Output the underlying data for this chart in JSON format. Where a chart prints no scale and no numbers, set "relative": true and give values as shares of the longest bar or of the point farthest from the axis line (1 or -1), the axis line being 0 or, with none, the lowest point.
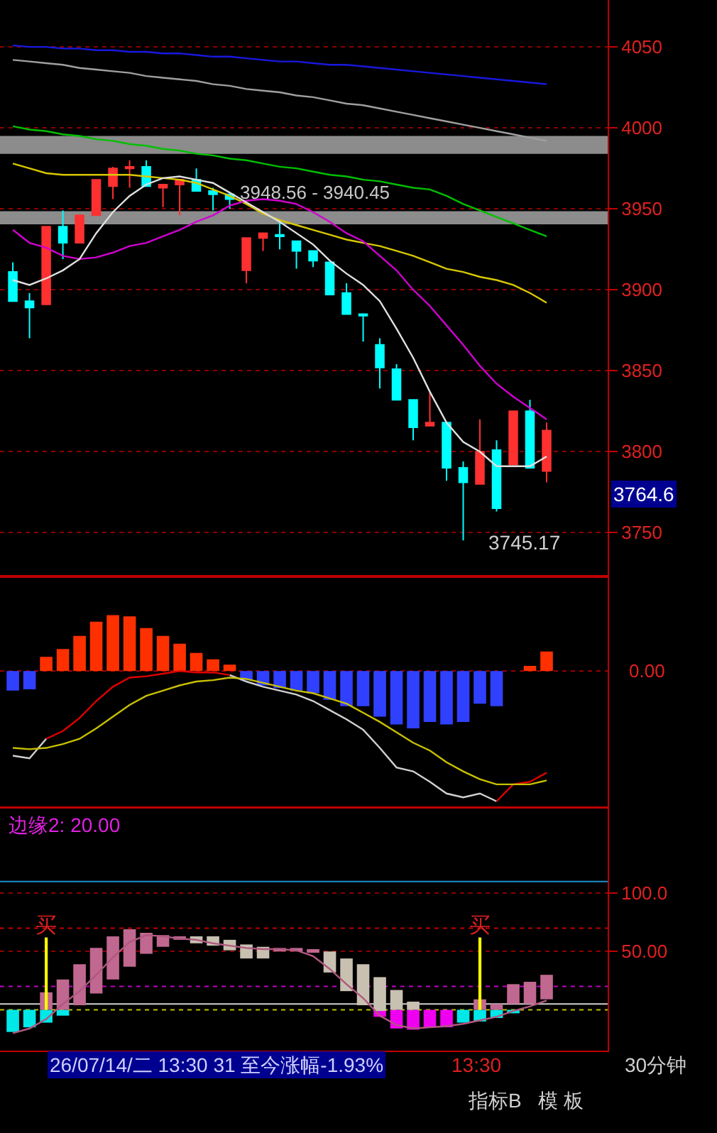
{
  "chart_data": [
    {
      "type": "candlestick",
      "categories": [
        null,
        null,
        null,
        null,
        null,
        null,
        null,
        null,
        null,
        null,
        null,
        null,
        null,
        null,
        null,
        null,
        null,
        null,
        null,
        null,
        null,
        null,
        null,
        null,
        null,
        null,
        null,
        null,
        null,
        null,
        null,
        null,
        null
      ],
      "ohlc": [
        [
          3911,
          3917,
          3893,
          3893
        ],
        [
          3893,
          3898,
          3870,
          3889
        ],
        [
          3891,
          3939,
          3891,
          3939
        ],
        [
          3939,
          3949,
          3919,
          3929
        ],
        [
          3929,
          3946,
          3929,
          3946
        ],
        [
          3946,
          3968,
          3946,
          3968
        ],
        [
          3964,
          3976,
          3956,
          3975
        ],
        [
          3975,
          3980,
          3963,
          3976
        ],
        [
          3976,
          3980,
          3964,
          3964
        ],
        [
          3963,
          3965,
          3951,
          3965
        ],
        [
          3965,
          3968,
          3946,
          3968
        ],
        [
          3968,
          3975,
          3961,
          3961
        ],
        [
          3961,
          3963,
          3949,
          3959
        ],
        [
          3959,
          3959,
          3950,
          3956
        ],
        [
          3912,
          3932,
          3904,
          3932
        ],
        [
          3932,
          3935,
          3924,
          3935
        ],
        [
          3934,
          3943,
          3925,
          3933
        ],
        [
          3930,
          3930,
          3913,
          3924
        ],
        [
          3924,
          3924,
          3914,
          3918
        ],
        [
          3917,
          3917,
          3897,
          3897
        ],
        [
          3898,
          3904,
          3885,
          3885
        ],
        [
          3885,
          3885,
          3868,
          3884
        ],
        [
          3866,
          3870,
          3839,
          3852
        ],
        [
          3851,
          3854,
          3832,
          3832
        ],
        [
          3832,
          3832,
          3807,
          3815
        ],
        [
          3816,
          3837,
          3816,
          3818
        ],
        [
          3818,
          3818,
          3782,
          3790
        ],
        [
          3790,
          3794,
          3745.17,
          3781
        ],
        [
          3780,
          3820,
          3780,
          3800
        ],
        [
          3801,
          3807,
          3763,
          3765
        ],
        [
          3792,
          3825,
          3792,
          3825
        ],
        [
          3825,
          3832,
          3790,
          3790
        ],
        [
          3788,
          3818,
          3781,
          3813
        ]
      ],
      "colors": [
        "#00ffff",
        "#00ffff",
        "#ff3030",
        "#00ffff",
        "#ff3030",
        "#ff3030",
        "#ff3030",
        "#ff3030",
        "#00ffff",
        "#ff3030",
        "#ff3030",
        "#00ffff",
        "#00ffff",
        "#00ffff",
        "#ff3030",
        "#ff3030",
        "#00ffff",
        "#00ffff",
        "#00ffff",
        "#00ffff",
        "#00ffff",
        "#00ffff",
        "#00ffff",
        "#00ffff",
        "#00ffff",
        "#ff3030",
        "#00ffff",
        "#00ffff",
        "#ff3030",
        "#00ffff",
        "#ff3030",
        "#00ffff",
        "#ff3030"
      ],
      "series": [
        {
          "type": "line",
          "color": "#1818e0",
          "values": [
            4051,
            4050,
            4050,
            4049,
            4049,
            4048,
            4048,
            4047,
            4047,
            4046,
            4046,
            4045,
            4044,
            4044,
            4043,
            4042,
            4041,
            4041,
            4040,
            4039,
            4039,
            4038,
            4037,
            4036,
            4035,
            4034,
            4033,
            4032,
            4031,
            4030,
            4029,
            4028,
            4027
          ]
        },
        {
          "type": "line",
          "color": "#a0a0a0",
          "values": [
            4042,
            4041,
            4040,
            4039,
            4037,
            4036,
            4035,
            4034,
            4032,
            4031,
            4030,
            4029,
            4027,
            4026,
            4024,
            4023,
            4022,
            4020,
            4019,
            4017,
            4015,
            4014,
            4012,
            4010,
            4008,
            4006,
            4004,
            4002,
            4000,
            3998,
            3996,
            3994,
            3992
          ]
        },
        {
          "type": "line",
          "color": "#00c000",
          "values": [
            4001,
            3999,
            3998,
            3996,
            3995,
            3993,
            3992,
            3990,
            3989,
            3987,
            3986,
            3984,
            3983,
            3981,
            3980,
            3978,
            3976,
            3975,
            3973,
            3971,
            3970,
            3968,
            3967,
            3965,
            3963,
            3962,
            3958,
            3953,
            3949,
            3945,
            3941,
            3937,
            3933
          ]
        },
        {
          "type": "line",
          "color": "#d8c800",
          "values": [
            3978,
            3975,
            3972,
            3971,
            3971,
            3971,
            3971,
            3971,
            3970,
            3969,
            3968,
            3966,
            3962,
            3958,
            3953,
            3947,
            3943,
            3940,
            3937,
            3934,
            3931,
            3929,
            3927,
            3924,
            3921,
            3917,
            3913,
            3911,
            3908,
            3906,
            3903,
            3898,
            3892
          ]
        },
        {
          "type": "line",
          "color": "#d000d0",
          "values": [
            3937,
            3929,
            3926,
            3921,
            3919,
            3920,
            3923,
            3927,
            3929,
            3933,
            3937,
            3942,
            3946,
            3952,
            3955,
            3956,
            3955,
            3953,
            3948,
            3942,
            3935,
            3930,
            3921,
            3912,
            3900,
            3890,
            3878,
            3866,
            3853,
            3842,
            3834,
            3827,
            3820
          ]
        },
        {
          "type": "line",
          "color": "#e0e0e0",
          "values": [
            3906,
            3903,
            3907,
            3912,
            3919,
            3935,
            3948,
            3958,
            3965,
            3969,
            3970,
            3968,
            3966,
            3960,
            3954,
            3948,
            3942,
            3935,
            3928,
            3918,
            3910,
            3903,
            3893,
            3876,
            3858,
            3837,
            3818,
            3806,
            3800,
            3791,
            3791,
            3791,
            3797
          ]
        }
      ],
      "ylim": [
        3724,
        4079
      ],
      "yticks": [
        3750,
        3800,
        3850,
        3900,
        3950,
        4000,
        4050
      ],
      "grid": "y",
      "bands": [
        {
          "axis": "y",
          "from": 3984,
          "to": 3995,
          "color": "#8c8c8c"
        },
        {
          "axis": "y",
          "from": 3940.45,
          "to": 3948.56,
          "label": "3948.56 - 3940.45",
          "color": "#8c8c8c"
        }
      ],
      "annotations": [
        "3745.17",
        "3764.6"
      ]
    },
    {
      "type": "bar",
      "relative": true,
      "categories": [
        null,
        null,
        null,
        null,
        null,
        null,
        null,
        null,
        null,
        null,
        null,
        null,
        null,
        null,
        null,
        null,
        null,
        null,
        null,
        null,
        null,
        null,
        null,
        null,
        null,
        null,
        null,
        null,
        null,
        null,
        null,
        null,
        null
      ],
      "series": [
        {
          "values": [
            -0.15,
            -0.14,
            0.11,
            0.17,
            0.27,
            0.38,
            0.43,
            0.42,
            0.33,
            0.27,
            0.21,
            0.14,
            0.09,
            0.05,
            -0.07,
            -0.11,
            -0.13,
            -0.15,
            -0.17,
            -0.22,
            -0.27,
            -0.27,
            -0.35,
            -0.41,
            -0.44,
            -0.39,
            -0.41,
            -0.39,
            -0.25,
            -0.27,
            0,
            0.04,
            0.15
          ],
          "colors": [
            "#3040ff",
            "#3040ff",
            "#ff3000",
            "#ff3000",
            "#ff3000",
            "#ff3000",
            "#ff3000",
            "#ff3000",
            "#ff3000",
            "#ff3000",
            "#ff3000",
            "#ff3000",
            "#ff3000",
            "#ff3000",
            "#3040ff",
            "#3040ff",
            "#3040ff",
            "#3040ff",
            "#3040ff",
            "#3040ff",
            "#3040ff",
            "#3040ff",
            "#3040ff",
            "#3040ff",
            "#3040ff",
            "#3040ff",
            "#3040ff",
            "#3040ff",
            "#3040ff",
            "#3040ff",
            "#c8c000",
            "#ff3000",
            "#ff3000"
          ]
        },
        {
          "type": "line",
          "color": "#d0d0d0",
          "values": [
            -0.65,
            -0.67,
            -0.52,
            null,
            null,
            null,
            null,
            null,
            null,
            null,
            null,
            null,
            null,
            -0.03,
            -0.08,
            -0.12,
            -0.15,
            -0.18,
            -0.23,
            -0.3,
            -0.37,
            -0.45,
            -0.59,
            -0.74,
            -0.77,
            -0.85,
            -0.94,
            -0.97,
            -0.94,
            -1,
            null,
            null,
            null
          ]
        },
        {
          "type": "line",
          "color": "#e00000",
          "values": [
            null,
            null,
            -0.52,
            -0.46,
            -0.36,
            -0.23,
            -0.12,
            -0.05,
            -0.04,
            -0.02,
            0,
            -0.01,
            -0.01,
            -0.03,
            null,
            null,
            null,
            null,
            null,
            null,
            null,
            null,
            null,
            null,
            null,
            null,
            null,
            null,
            null,
            -1,
            -0.87,
            -0.85,
            -0.78
          ]
        },
        {
          "type": "line",
          "color": "#c8c000",
          "values": [
            -0.59,
            -0.6,
            -0.59,
            -0.56,
            -0.52,
            -0.44,
            -0.35,
            -0.26,
            -0.19,
            -0.15,
            -0.11,
            -0.08,
            -0.07,
            -0.05,
            -0.06,
            -0.09,
            -0.12,
            -0.15,
            -0.17,
            -0.21,
            -0.25,
            -0.32,
            -0.39,
            -0.47,
            -0.55,
            -0.61,
            -0.7,
            -0.77,
            -0.83,
            -0.87,
            -0.87,
            -0.87,
            -0.84
          ]
        }
      ],
      "ref_lines": [
        {
          "axis": "y",
          "value": 0,
          "label": "0.00",
          "color": "#a00000",
          "line_style": "dotted"
        }
      ]
    },
    {
      "type": "bar",
      "categories": [
        null,
        null,
        null,
        null,
        null,
        null,
        null,
        null,
        null,
        null,
        null,
        null,
        null,
        null,
        null,
        null,
        null,
        null,
        null,
        null,
        null,
        null,
        null,
        null,
        null,
        null,
        null,
        null,
        null,
        null,
        null,
        null,
        null
      ],
      "series": [
        {
          "values": [
            -19,
            -15,
            -11,
            -5,
            null,
            null,
            null,
            null,
            null,
            null,
            null,
            null,
            null,
            null,
            null,
            null,
            null,
            null,
            null,
            null,
            null,
            null,
            -6,
            -16,
            -17,
            -15,
            -15,
            -11,
            -10,
            -7,
            -3,
            null,
            null
          ],
          "colors": [
            "#00e8e8",
            "#00e8e8",
            "#00e8e8",
            "#00e8e8",
            "#00e8e8",
            "#00e8e8",
            "#00e8e8",
            "#00e8e8",
            "#00e8e8",
            "#00e8e8",
            "#00e8e8",
            "#00e8e8",
            "#00e8e8",
            "#00e8e8",
            "#00e8e8",
            "#00e8e8",
            "#00e8e8",
            "#00e8e8",
            "#00e8e8",
            "#00e8e8",
            "#00e8e8",
            "#00e8e8",
            "#f000f0",
            "#f000f0",
            "#f000f0",
            "#f000f0",
            "#f000f0",
            "#00e8e8",
            "#00e8e8",
            "#00e8e8",
            "#00e8e8",
            "#00e8e8",
            "#00e8e8"
          ]
        },
        {
          "base": [
            null,
            null,
            0,
            0,
            4,
            14,
            26,
            37,
            48,
            54,
            60,
            57,
            55,
            51,
            44,
            44,
            50,
            50,
            50,
            32,
            16,
            4,
            -1,
            0,
            0,
            null,
            null,
            null,
            0,
            0,
            5,
            5,
            9
          ],
          "values": [
            null,
            null,
            15,
            26,
            35,
            39,
            37,
            32,
            18,
            10,
            3,
            6,
            8,
            9,
            12,
            10,
            3,
            3,
            2,
            18,
            28,
            35,
            29,
            17,
            7,
            null,
            null,
            null,
            9,
            5,
            17,
            19,
            21
          ],
          "colors": [
            "#c06890",
            "#c06890",
            "#c06890",
            "#c06890",
            "#c06890",
            "#c06890",
            "#c06890",
            "#c06890",
            "#c06890",
            "#c06890",
            "#c06890",
            "#c8c0b0",
            "#c8c0b0",
            "#c8c0b0",
            "#c8c0b0",
            "#c8c0b0",
            "#c06890",
            "#c06890",
            "#c06890",
            "#c8c0b0",
            "#c8c0b0",
            "#c8c0b0",
            "#c8c0b0",
            "#c8c0b0",
            "#c8c0b0",
            "#c06890",
            "#c06890",
            "#c06890",
            "#c06890",
            "#c06890",
            "#c06890",
            "#c06890",
            "#c06890"
          ]
        },
        {
          "color": "#ffff00",
          "base": [
            null,
            null,
            0,
            null,
            null,
            null,
            null,
            null,
            null,
            null,
            null,
            null,
            null,
            null,
            null,
            null,
            null,
            null,
            null,
            null,
            null,
            null,
            null,
            null,
            null,
            null,
            null,
            null,
            0,
            null,
            null,
            null,
            null
          ],
          "values": [
            null,
            null,
            62,
            null,
            null,
            null,
            null,
            null,
            null,
            null,
            null,
            null,
            null,
            null,
            null,
            null,
            null,
            null,
            null,
            null,
            null,
            null,
            null,
            null,
            null,
            null,
            null,
            null,
            62,
            null,
            null,
            null,
            null
          ],
          "value_labels": [
            null,
            null,
            "买",
            null,
            null,
            null,
            null,
            null,
            null,
            null,
            null,
            null,
            null,
            null,
            null,
            null,
            null,
            null,
            null,
            null,
            null,
            null,
            null,
            null,
            null,
            null,
            null,
            null,
            "买",
            null,
            null,
            null,
            null
          ]
        },
        {
          "type": "line",
          "color": "#b05880",
          "values": [
            -20,
            -16,
            -8,
            5,
            16,
            30,
            45,
            58,
            64,
            63,
            61,
            60,
            57,
            55,
            53,
            52,
            52,
            51,
            46,
            35,
            22,
            10,
            -5,
            -13,
            -16,
            -15,
            -14,
            -12,
            -9,
            -6,
            -1,
            3,
            8
          ]
        }
      ],
      "ylim": [
        -35,
        173
      ],
      "yticks": [
        {
          "value": 50,
          "label": "50.00"
        },
        {
          "value": 100,
          "label": "100.0"
        }
      ],
      "grid": "y",
      "ref_lines": [
        {
          "axis": "y",
          "value": 110,
          "color": "#1e90d0",
          "line_style": "solid"
        },
        {
          "axis": "y",
          "value": 70,
          "color": "#c00000",
          "line_style": "dotted"
        },
        {
          "axis": "y",
          "value": 20,
          "color": "#c000c0",
          "line_style": "dotted"
        },
        {
          "axis": "y",
          "value": 5,
          "color": "#d0d0d0",
          "line_style": "solid"
        },
        {
          "axis": "y",
          "value": 0,
          "color": "#c0c000",
          "line_style": "dotted"
        }
      ],
      "annotations": [
        "边缘2: 20.00",
        "26/07/14/二 13:30 31 至今涨幅-1.93%",
        "13:30",
        "30分钟",
        "指标B",
        "模 板"
      ]
    }
  ]
}
